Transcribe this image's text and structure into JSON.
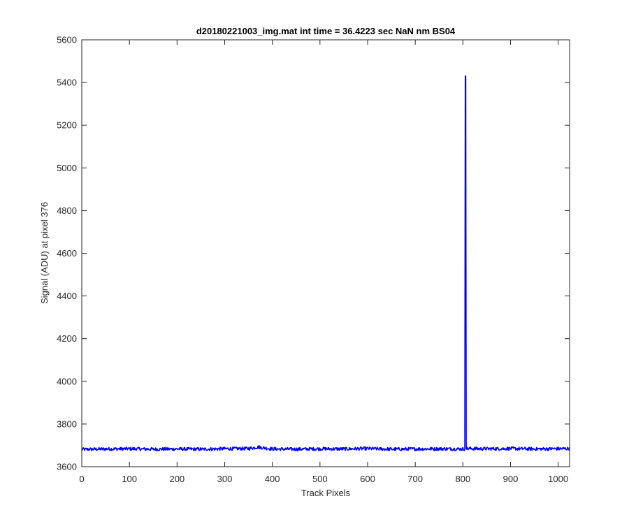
{
  "chart_data": {
    "type": "line",
    "title": "d20180221003_img.mat int time = 36.4223 sec  NaN nm BS04",
    "xlabel": "Track Pixels",
    "ylabel": "Signal (ADU) at pixel 376",
    "xlim": [
      0,
      1024
    ],
    "ylim": [
      3600,
      5600
    ],
    "xticks": [
      0,
      100,
      200,
      300,
      400,
      500,
      600,
      700,
      800,
      900,
      1000
    ],
    "yticks": [
      3600,
      3800,
      4000,
      4200,
      4400,
      4600,
      4800,
      5000,
      5200,
      5400,
      5600
    ],
    "grid": false,
    "legend": "none",
    "series": [
      {
        "color": "#0000ff",
        "baseline": 3683,
        "noise_amplitude": 8,
        "points": [
          [
            0,
            3681
          ],
          [
            50,
            3683
          ],
          [
            100,
            3684
          ],
          [
            150,
            3682
          ],
          [
            200,
            3683
          ],
          [
            250,
            3682
          ],
          [
            300,
            3684
          ],
          [
            350,
            3685
          ],
          [
            370,
            3692
          ],
          [
            400,
            3683
          ],
          [
            450,
            3682
          ],
          [
            500,
            3684
          ],
          [
            550,
            3683
          ],
          [
            600,
            3685
          ],
          [
            650,
            3682
          ],
          [
            700,
            3683
          ],
          [
            750,
            3684
          ],
          [
            800,
            3683
          ],
          [
            804,
            3683
          ],
          [
            805,
            5430
          ],
          [
            806,
            5430
          ],
          [
            807,
            3685
          ],
          [
            850,
            3684
          ],
          [
            900,
            3685
          ],
          [
            950,
            3683
          ],
          [
            1000,
            3684
          ],
          [
            1024,
            3685
          ]
        ]
      }
    ]
  }
}
